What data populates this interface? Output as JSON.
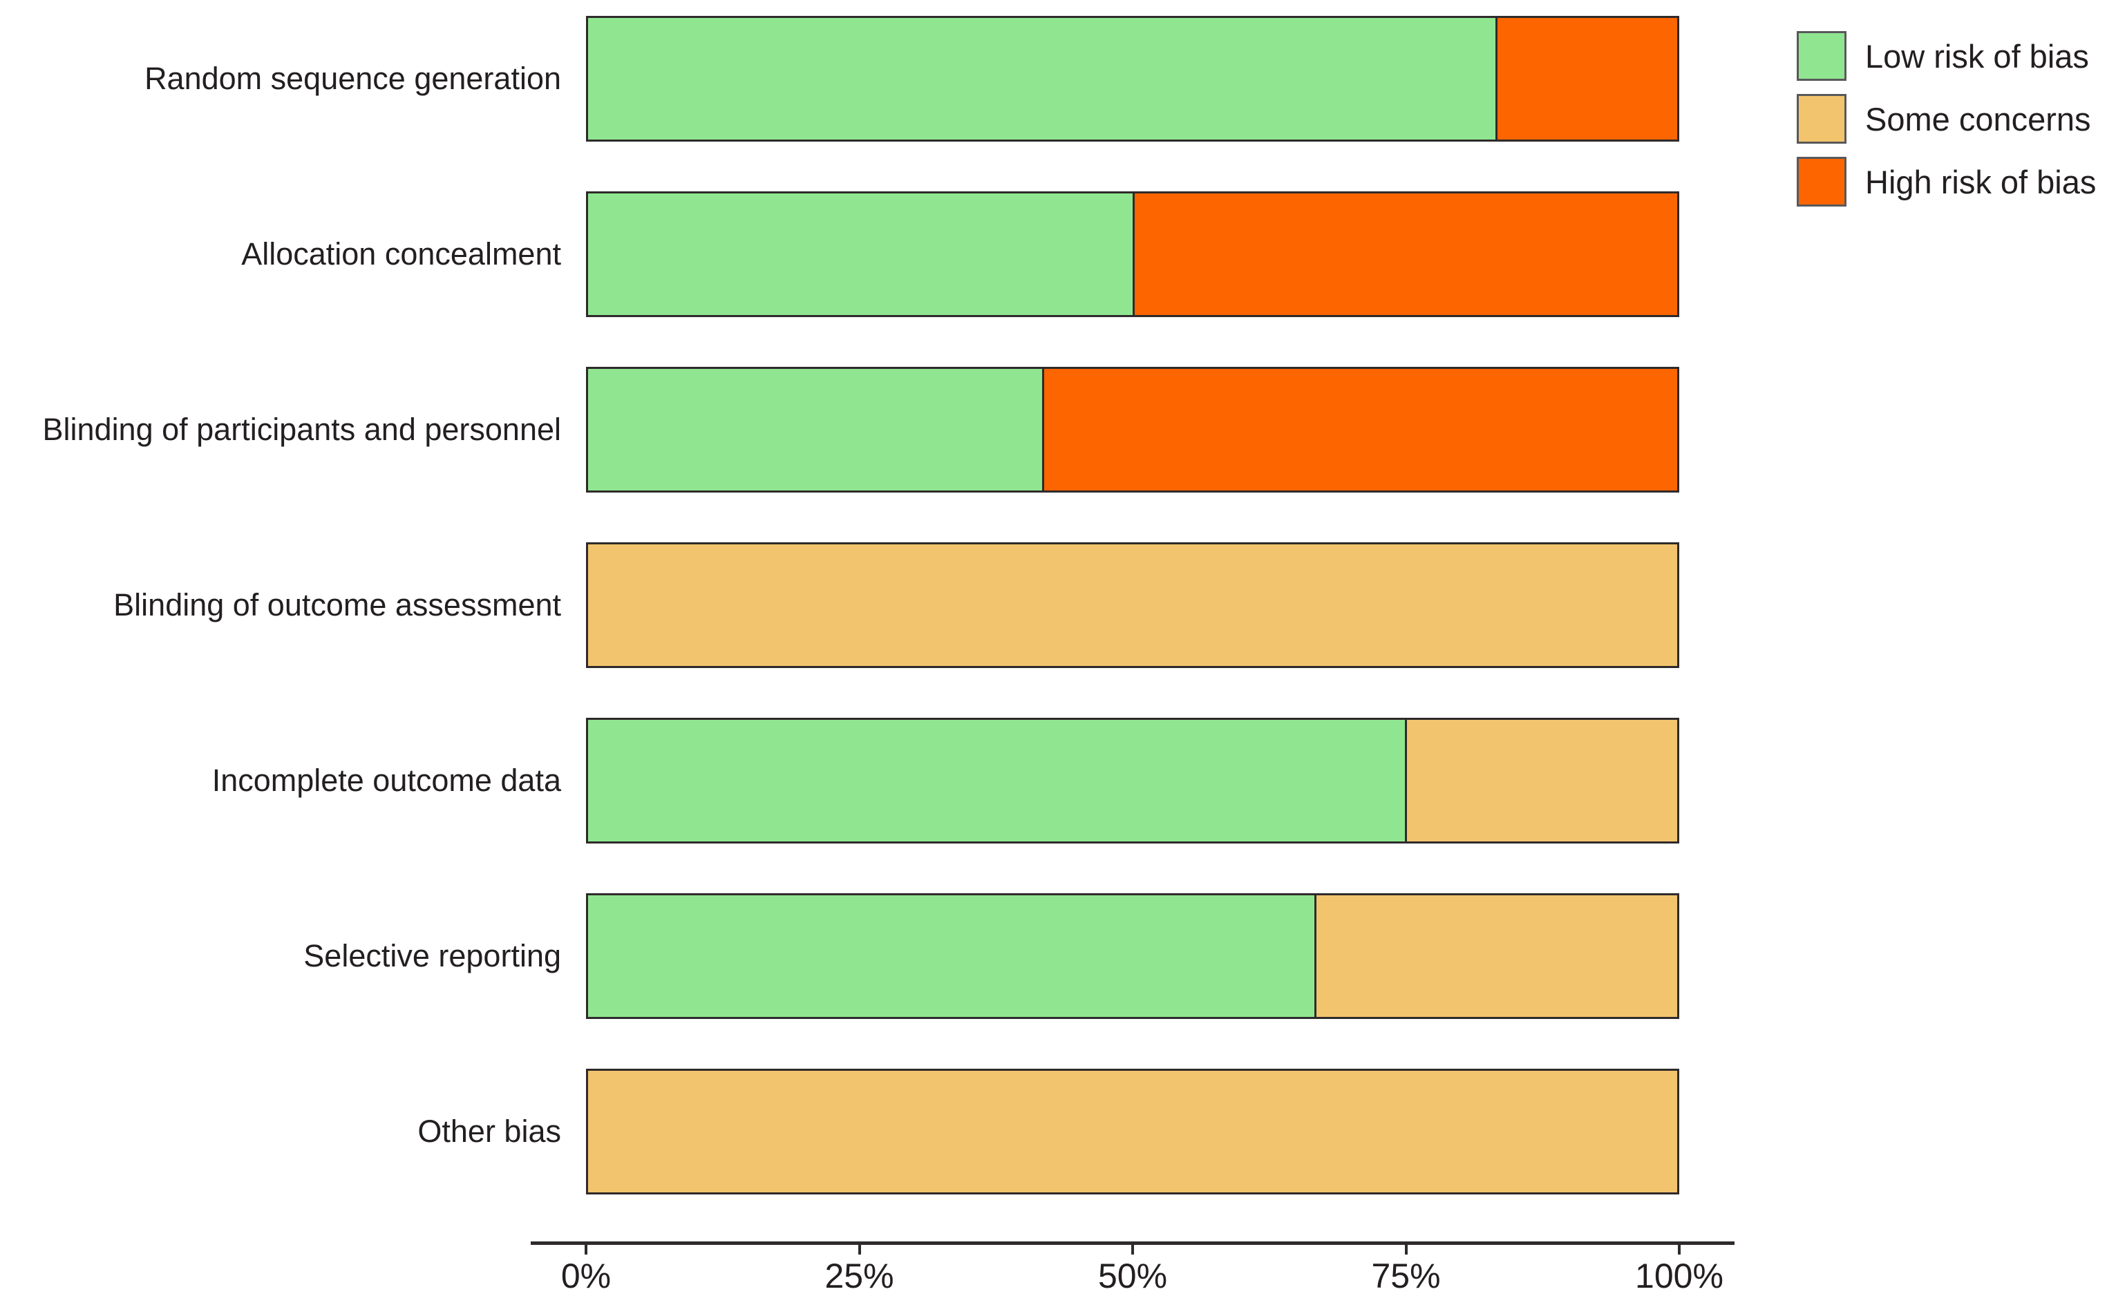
{
  "chart_data": {
    "type": "bar",
    "orientation": "horizontal",
    "stacked": true,
    "unit": "percent",
    "title": "",
    "xlabel": "",
    "ylabel": "",
    "xlim": [
      0,
      100
    ],
    "grid": false,
    "legend_position": "top-right",
    "categories": [
      "Random sequence generation",
      "Allocation concealment",
      "Blinding of participants and personnel",
      "Blinding of outcome assessment",
      "Incomplete outcome data",
      "Selective reporting",
      "Other bias"
    ],
    "series": [
      {
        "name": "Low risk of bias",
        "color": "#90E690",
        "values": [
          83.33,
          50,
          41.67,
          0,
          75,
          66.67,
          0
        ]
      },
      {
        "name": "Some concerns",
        "color": "#F2C46D",
        "values": [
          0,
          0,
          0,
          100,
          25,
          33.33,
          100
        ]
      },
      {
        "name": "High risk of bias",
        "color": "#FC6500",
        "values": [
          16.67,
          50,
          58.33,
          0,
          0,
          0,
          0
        ]
      }
    ],
    "x_ticks": [
      {
        "label": "0%",
        "value": 0
      },
      {
        "label": "25%",
        "value": 25
      },
      {
        "label": "50%",
        "value": 50
      },
      {
        "label": "75%",
        "value": 75
      },
      {
        "label": "100%",
        "value": 100
      }
    ]
  },
  "colors": {
    "low_risk": "#90E690",
    "some_concerns": "#F2C46D",
    "high_risk": "#FC6500",
    "bar_border": "#2e2a2b",
    "text": "#231f20",
    "axis": "#2e2a2b",
    "background": "#ffffff"
  }
}
